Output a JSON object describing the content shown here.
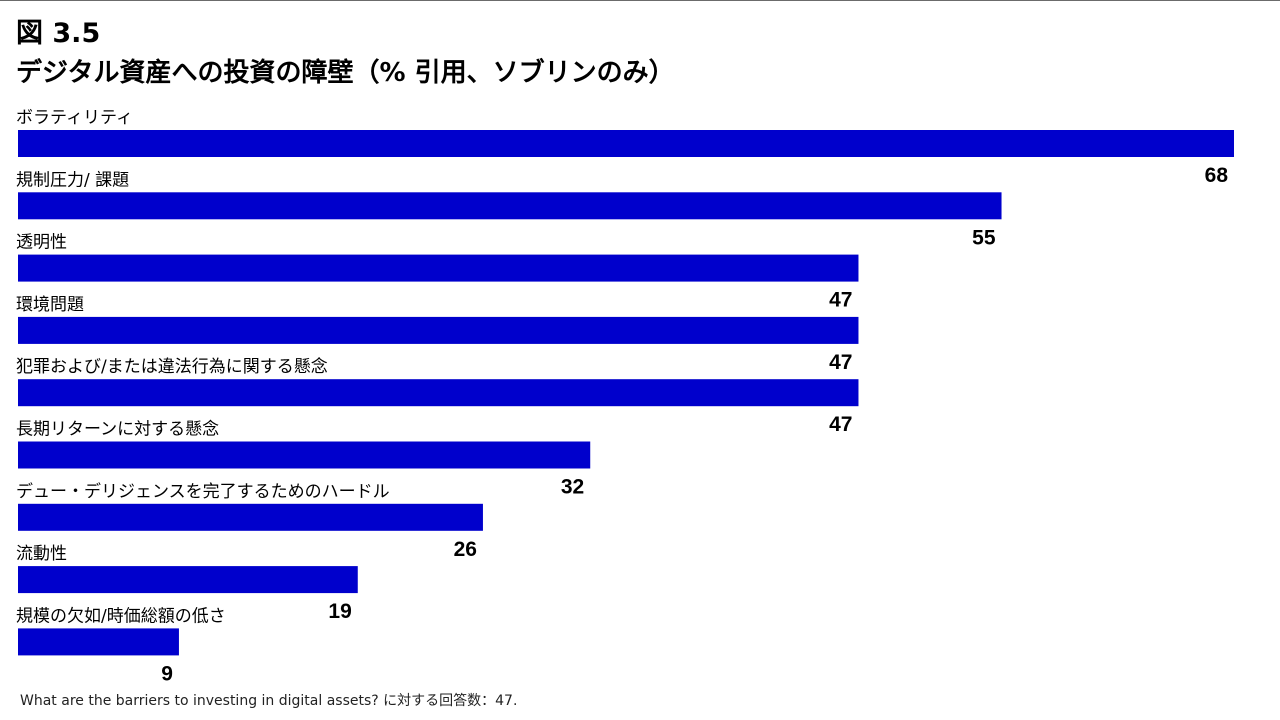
{
  "figure": {
    "number": "図 3.5",
    "title": "デジタル資産への投資の障壁（% 引用、ソブリンのみ）"
  },
  "chart_data": {
    "type": "bar",
    "orientation": "horizontal",
    "bar_color": "#0000CC",
    "xlim": [
      0,
      68
    ],
    "categories": [
      "ボラティリティ",
      "規制圧力/ 課題",
      "透明性",
      "環境問題",
      "犯罪および/または違法行為に関する懸念",
      "長期リターンに対する懸念",
      "デュー・デリジェンスを完了するためのハードル",
      "流動性",
      "規模の欠如/時価総額の低さ"
    ],
    "values": [
      68,
      55,
      47,
      47,
      47,
      32,
      26,
      19,
      9
    ],
    "grid": false,
    "legend": "none"
  },
  "footnote": "What are the barriers to investing in digital assets? に対する回答数：47."
}
